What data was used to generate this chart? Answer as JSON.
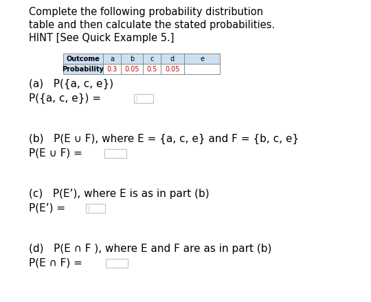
{
  "title_line1": "Complete the following probability distribution",
  "title_line2": "table and then calculate the stated probabilities.",
  "title_line3": "HINT [See Quick Example 5.]",
  "table_headers": [
    "Outcome",
    "a",
    "b",
    "c",
    "d",
    "e"
  ],
  "table_row_label": "Probability",
  "table_values": [
    "0.3",
    "0.05",
    "0.5",
    "0.05",
    ""
  ],
  "part_a_line1": "(a)   P({a, c, e})",
  "part_a_line2": "P({a, c, e}) =",
  "part_b_line1": "(b)   P(E ∪ F), where E = {a, c, e} and F = {b, c, e}",
  "part_b_line2": "P(E ∪ F) =",
  "part_c_line1": "(c)   P(E’), where E is as in part (b)",
  "part_c_line2": "P(E’) =",
  "part_d_line1": "(d)   P(E ∩ F ), where E and F are as in part (b)",
  "part_d_line2": "P(E ∩ F) =",
  "bg_color": "#ffffff",
  "text_color": "#000000",
  "red_color": "#cc0000",
  "table_header_bg": "#cce0f0",
  "table_border_color": "#888888",
  "input_box_border": "#bbbbbb",
  "title_fontsize": 10.5,
  "body_fontsize": 11.0,
  "table_fontsize": 7.0,
  "prob_fontsize": 7.0
}
